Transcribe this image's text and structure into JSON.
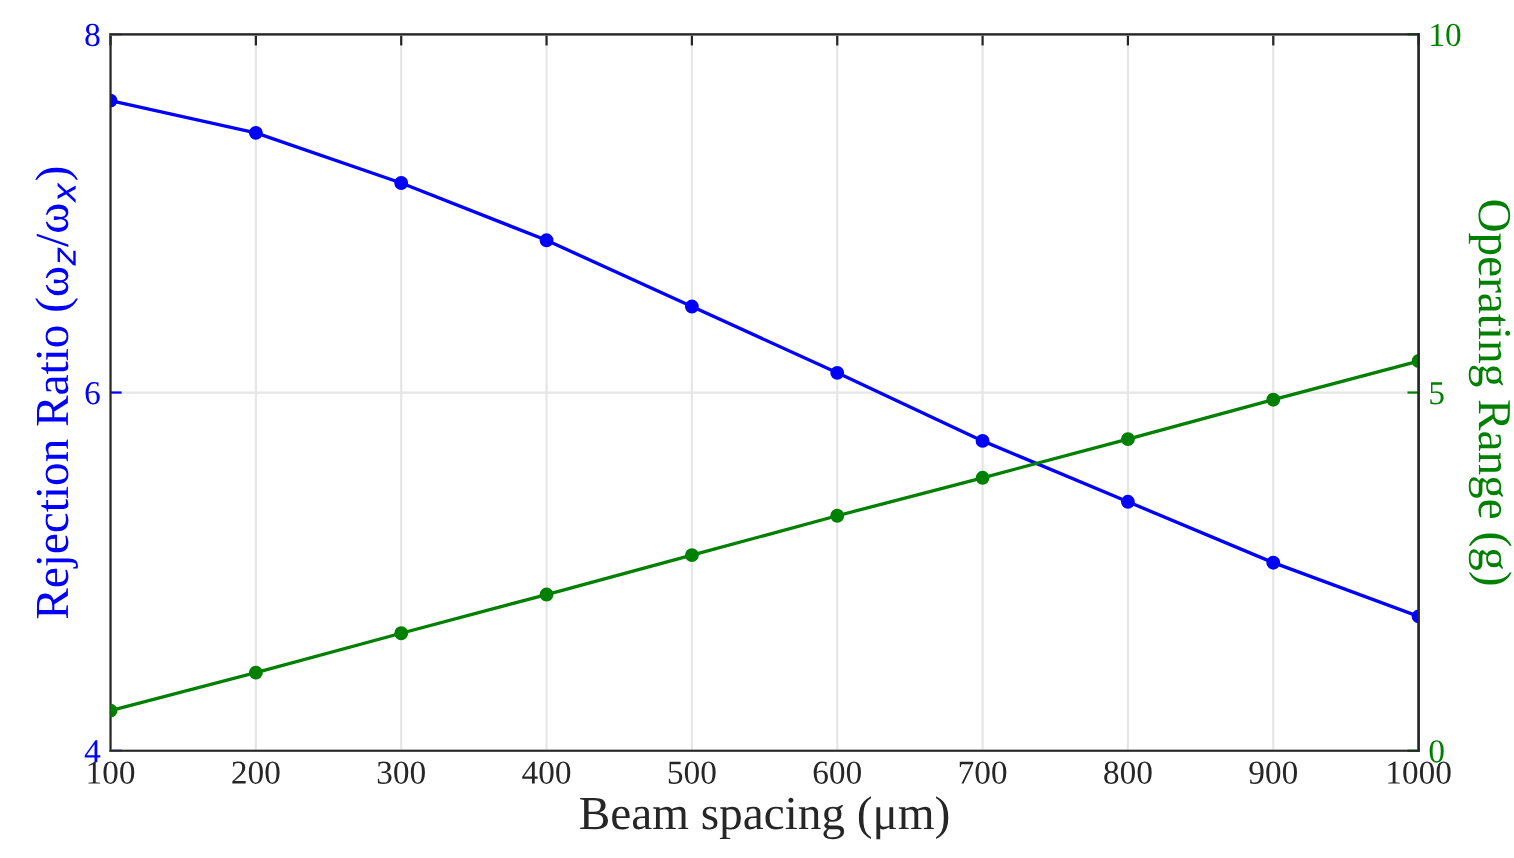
{
  "chart_data": {
    "type": "line",
    "xlabel": "Beam spacing (μm)",
    "ylabel": "Rejection Ratio (ω$_{z}$/ω$_{x}$)",
    "y2label": "Operating Range (g)",
    "x": [
      100,
      200,
      300,
      400,
      500,
      600,
      700,
      800,
      900,
      1000
    ],
    "series": [
      {
        "color": "#0000ff",
        "values": [
          7.63,
          7.45,
          7.17,
          6.85,
          6.48,
          6.11,
          5.73,
          5.39,
          5.05,
          4.75
        ]
      },
      {
        "color": "#008000",
        "axis": "y2",
        "values": [
          0.56,
          1.09,
          1.64,
          2.18,
          2.73,
          3.28,
          3.81,
          4.35,
          4.9,
          5.44
        ]
      }
    ],
    "xlim": [
      100,
      1000
    ],
    "xticks": [
      100,
      200,
      300,
      400,
      500,
      600,
      700,
      800,
      900,
      1000
    ],
    "ylim": [
      4,
      8
    ],
    "yticks": [
      4,
      6,
      8
    ],
    "y2lim": [
      0,
      10
    ],
    "y2ticks": [
      0,
      5,
      10
    ],
    "grid": true,
    "marker": "circle",
    "line_style": "solid"
  }
}
